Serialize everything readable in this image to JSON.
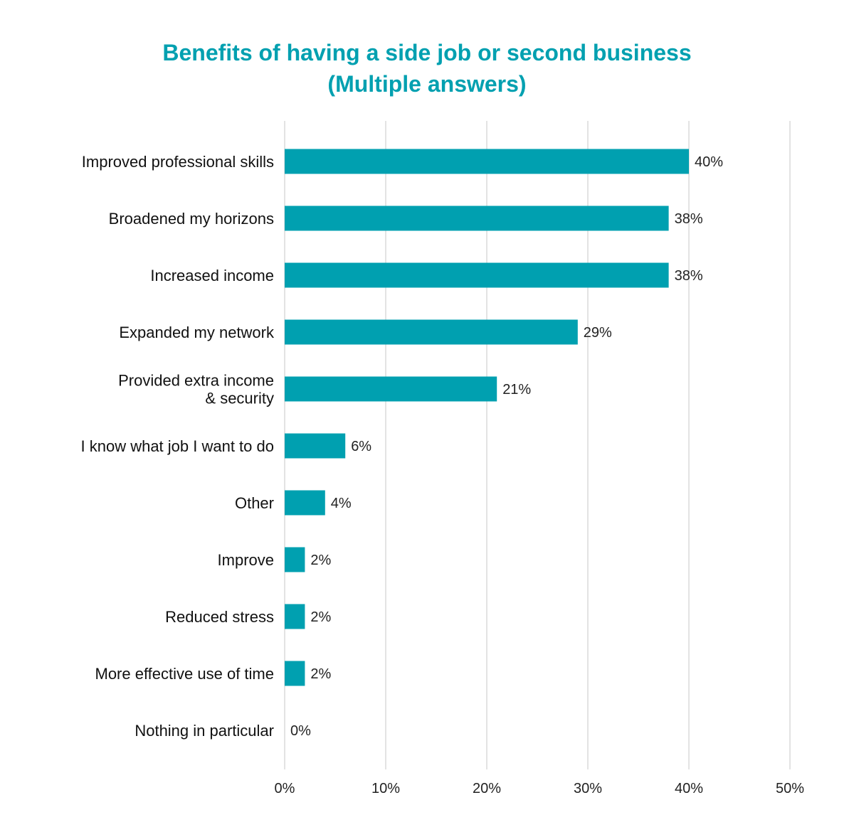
{
  "chart_data": {
    "type": "bar",
    "orientation": "horizontal",
    "title": "Benefits of having a side job or second business",
    "subtitle": "(Multiple answers)",
    "categories": [
      "Improved professional skills",
      "Broadened my horizons",
      "Increased income",
      "Expanded my network",
      "Provided extra income & security",
      "I know what job I want to do",
      "Other",
      "Improve",
      "Reduced stress",
      "More effective use of time",
      "Nothing in particular"
    ],
    "category_lines": [
      [
        "Improved professional skills"
      ],
      [
        "Broadened my horizons"
      ],
      [
        "Increased income"
      ],
      [
        "Expanded my network"
      ],
      [
        "Provided extra income",
        "& security"
      ],
      [
        "I know what job I want to do"
      ],
      [
        "Other"
      ],
      [
        "Improve"
      ],
      [
        "Reduced stress"
      ],
      [
        "More effective use of time"
      ],
      [
        "Nothing in particular"
      ]
    ],
    "values": [
      40,
      38,
      38,
      29,
      21,
      6,
      4,
      2,
      2,
      2,
      0
    ],
    "value_labels": [
      "40%",
      "38%",
      "38%",
      "29%",
      "21%",
      "6%",
      "4%",
      "2%",
      "2%",
      "2%",
      "0%"
    ],
    "xlim": [
      0,
      50
    ],
    "x_ticks": [
      0,
      10,
      20,
      30,
      40,
      50
    ],
    "x_tick_labels": [
      "0%",
      "10%",
      "20%",
      "30%",
      "40%",
      "50%"
    ],
    "xlabel": "",
    "ylabel": "",
    "grid": "vertical",
    "legend": "none",
    "bar_color": "#00a0b0",
    "title_color": "#00a0b0"
  }
}
